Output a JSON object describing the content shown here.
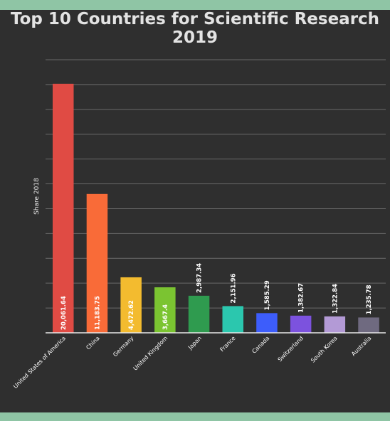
{
  "page": {
    "band_color": "#8fc5a5",
    "background": "#2f2f2f"
  },
  "chart_data": {
    "type": "bar",
    "title_line1": "Top 10 Countries for Scientific Research",
    "title_line2": "2019",
    "xlabel": "",
    "ylabel": "Share 2018",
    "ylim": [
      0,
      22000
    ],
    "grid": true,
    "categories": [
      "United States of America",
      "China",
      "Germany",
      "United Kingdom",
      "Japan",
      "France",
      "Canada",
      "Switzerland",
      "South Korea",
      "Australia"
    ],
    "values": [
      20061.64,
      11183.75,
      4472.62,
      3667.4,
      2987.34,
      2151.96,
      1585.29,
      1382.67,
      1322.84,
      1235.78
    ],
    "value_labels": [
      "20,061.64",
      "11,183.75",
      "4,472.62",
      "3,667.4",
      "2,987.34",
      "2,151.96",
      "1,585.29",
      "1,382.67",
      "1,322.84",
      "1,235.78"
    ],
    "colors": [
      "#e04b44",
      "#f96b38",
      "#f3bb2f",
      "#7bc431",
      "#2f9b4f",
      "#2bc7ae",
      "#3d5dfb",
      "#7c52de",
      "#b39ad6",
      "#6f6a80"
    ]
  }
}
